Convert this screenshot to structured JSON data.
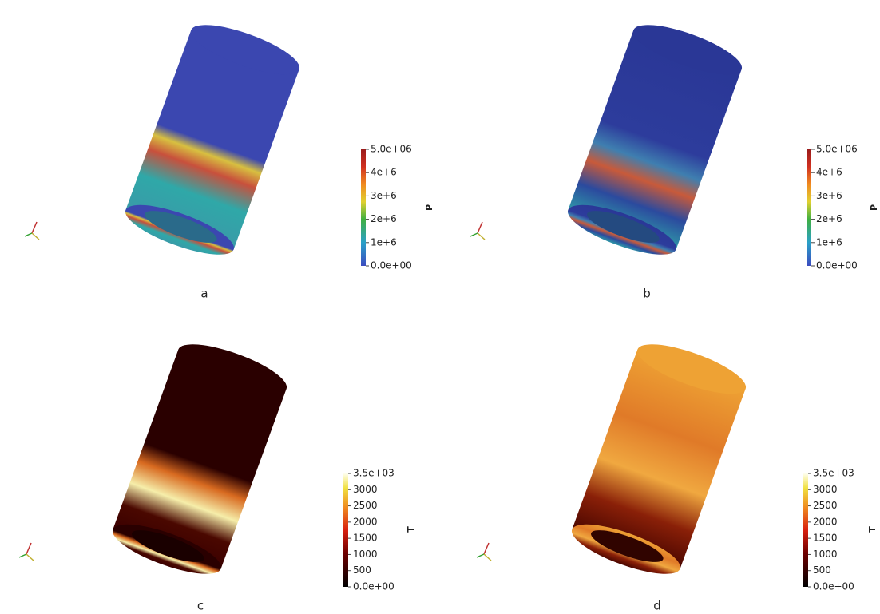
{
  "panels": [
    {
      "label": "a",
      "colorbar": {
        "title": "P",
        "range": [
          0,
          5000000
        ],
        "ticks": [
          {
            "value": 5000000,
            "label": "5.0e+06"
          },
          {
            "value": 4000000,
            "label": "4e+6"
          },
          {
            "value": 3000000,
            "label": "3e+6"
          },
          {
            "value": 2000000,
            "label": "2e+6"
          },
          {
            "value": 1000000,
            "label": "1e+6"
          },
          {
            "value": 0,
            "label": "0.0e+00"
          }
        ]
      }
    },
    {
      "label": "b",
      "colorbar": {
        "title": "P",
        "range": [
          0,
          5000000
        ],
        "ticks": [
          {
            "value": 5000000,
            "label": "5.0e+06"
          },
          {
            "value": 4000000,
            "label": "4e+6"
          },
          {
            "value": 3000000,
            "label": "3e+6"
          },
          {
            "value": 2000000,
            "label": "2e+6"
          },
          {
            "value": 1000000,
            "label": "1e+6"
          },
          {
            "value": 0,
            "label": "0.0e+00"
          }
        ]
      }
    },
    {
      "label": "c",
      "colorbar": {
        "title": "T",
        "range": [
          0,
          3500
        ],
        "ticks": [
          {
            "value": 3500,
            "label": "3.5e+03"
          },
          3000,
          2500,
          2000,
          1500,
          1000,
          500,
          {
            "value": 0,
            "label": "0.0e+00"
          }
        ]
      }
    },
    {
      "label": "d",
      "colorbar": {
        "title": "T",
        "range": [
          0,
          3500
        ],
        "ticks": [
          {
            "value": 3500,
            "label": "3.5e+03"
          },
          3000,
          2500,
          2000,
          1500,
          1000,
          500,
          {
            "value": 0,
            "label": "0.0e+00"
          }
        ]
      }
    }
  ]
}
